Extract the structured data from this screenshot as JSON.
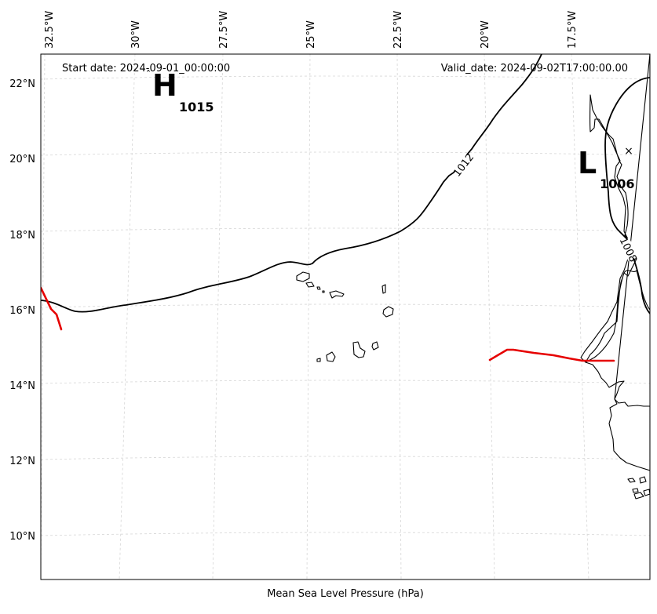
{
  "header": {
    "start_date": "Start date: 2024-09-01_00:00:00",
    "valid_date": "Valid_date: 2024-09-02T17:00:00.00"
  },
  "footer": {
    "xlabel": "Mean Sea Level Pressure (hPa)"
  },
  "axes": {
    "lon_ticks": [
      "32.5°W",
      "30°W",
      "27.5°W",
      "25°W",
      "22.5°W",
      "20°W",
      "17.5°W"
    ],
    "lat_ticks": [
      "22°N",
      "20°N",
      "18°N",
      "16°N",
      "14°N",
      "12°N",
      "10°N"
    ]
  },
  "pressure_centers": {
    "high": {
      "symbol": "H",
      "value": "1015"
    },
    "low": {
      "symbol": "L",
      "value": "1006"
    }
  },
  "isobar_labels": {
    "a": "1012",
    "b": "1008"
  },
  "colors": {
    "front": "#e60000",
    "isobar": "#000000",
    "grid": "#d6d6d6"
  }
}
